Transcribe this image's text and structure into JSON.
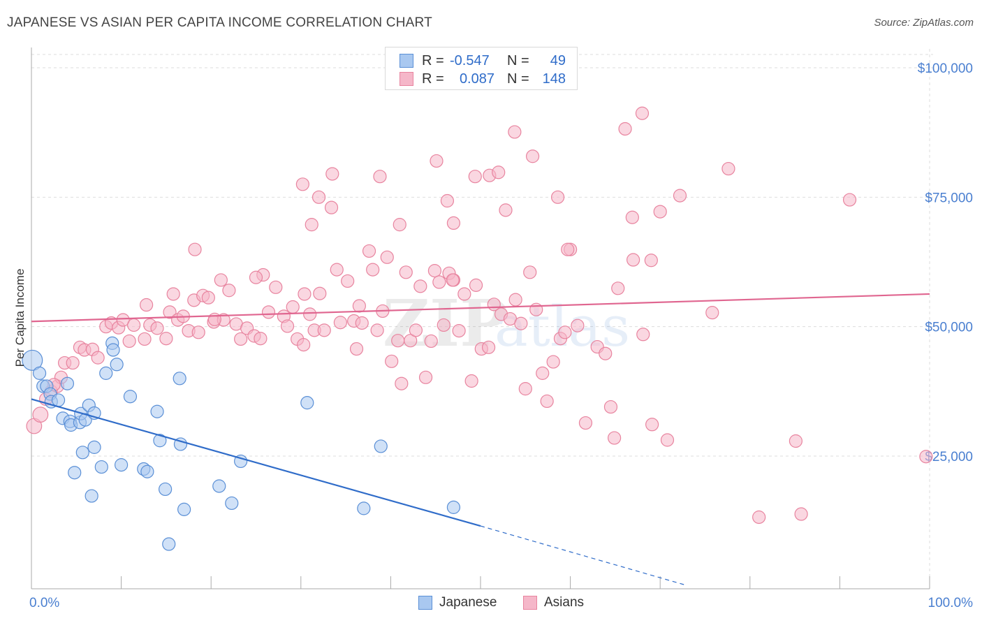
{
  "header": {
    "title": "JAPANESE VS ASIAN PER CAPITA INCOME CORRELATION CHART",
    "source": "Source: ZipAtlas.com"
  },
  "legend_top": {
    "rows": [
      {
        "r_label": "R =",
        "r_value": "-0.547",
        "n_label": "N =",
        "n_value": "49"
      },
      {
        "r_label": "R =",
        "r_value": "0.087",
        "n_label": "N =",
        "n_value": "148"
      }
    ]
  },
  "legend_bottom": {
    "items": [
      {
        "label": "Japanese"
      },
      {
        "label": "Asians"
      }
    ]
  },
  "colors": {
    "japanese_fill": "#a9c8f0",
    "japanese_stroke": "#5a8fd6",
    "japanese_line": "#2f6cc9",
    "asians_fill": "#f5b7c9",
    "asians_stroke": "#e8849f",
    "asians_line": "#e06690",
    "grid": "#dddddd",
    "tick_text": "#4a7fd0"
  },
  "watermark": {
    "part1": "ZIP",
    "part2": "atlas"
  },
  "chart_data": {
    "type": "scatter",
    "title": "JAPANESE VS ASIAN PER CAPITA INCOME CORRELATION CHART",
    "xlabel": "",
    "ylabel": "Per Capita Income",
    "xlim": [
      0,
      100
    ],
    "ylim": [
      0,
      105000
    ],
    "x_tick_labels": [
      "0.0%",
      "100.0%"
    ],
    "y_ticks": [
      25000,
      50000,
      75000,
      100000
    ],
    "y_tick_labels": [
      "$25,000",
      "$50,000",
      "$75,000",
      "$100,000"
    ],
    "grid": true,
    "legend_position": "top-center",
    "series": [
      {
        "name": "Japanese",
        "R": -0.547,
        "N": 49,
        "trend": {
          "x0": 0,
          "y0": 36000,
          "x1": 50,
          "y1": 11500,
          "dashed_to_x": 73,
          "dashed_to_y": 0
        },
        "points": [
          [
            0.1,
            43500,
            1.6
          ],
          [
            0.9,
            41000,
            1.0
          ],
          [
            1.3,
            38500,
            1.0
          ],
          [
            1.7,
            38500,
            1.0
          ],
          [
            4.0,
            39000,
            1.0
          ],
          [
            2.1,
            37000,
            1.0
          ],
          [
            2.2,
            35500,
            1.0
          ],
          [
            3.0,
            35800,
            1.0
          ],
          [
            3.5,
            32300,
            1.0
          ],
          [
            4.3,
            31700,
            1.0
          ],
          [
            4.4,
            31000,
            1.0
          ],
          [
            5.4,
            31500,
            1.0
          ],
          [
            5.5,
            33200,
            1.0
          ],
          [
            6.4,
            34800,
            1.0
          ],
          [
            6.0,
            32000,
            1.0
          ],
          [
            7.0,
            33300,
            1.0
          ],
          [
            8.3,
            41000,
            1.0
          ],
          [
            9.0,
            46800,
            1.0
          ],
          [
            9.1,
            45500,
            1.0
          ],
          [
            9.5,
            42700,
            1.0
          ],
          [
            11.0,
            36500,
            1.0
          ],
          [
            14.0,
            33600,
            1.0
          ],
          [
            16.5,
            40000,
            1.0
          ],
          [
            14.3,
            28000,
            1.0
          ],
          [
            16.6,
            27300,
            1.0
          ],
          [
            7.0,
            26700,
            1.0
          ],
          [
            5.7,
            25700,
            1.0
          ],
          [
            4.8,
            21800,
            1.0
          ],
          [
            7.8,
            22900,
            1.0
          ],
          [
            10.0,
            23300,
            1.0
          ],
          [
            12.5,
            22500,
            1.0
          ],
          [
            12.9,
            22000,
            1.0
          ],
          [
            23.3,
            24000,
            1.0
          ],
          [
            6.7,
            17300,
            1.0
          ],
          [
            14.9,
            18600,
            1.0
          ],
          [
            20.9,
            19200,
            1.0
          ],
          [
            17.0,
            14700,
            1.0
          ],
          [
            22.3,
            15900,
            1.0
          ],
          [
            30.7,
            35300,
            1.0
          ],
          [
            38.9,
            26900,
            1.0
          ],
          [
            37.0,
            14900,
            1.0
          ],
          [
            47.0,
            15100,
            1.0
          ],
          [
            15.3,
            8000,
            1.0
          ]
        ]
      },
      {
        "name": "Asians",
        "R": 0.087,
        "N": 148,
        "trend": {
          "x0": 0,
          "y0": 51000,
          "x1": 100,
          "y1": 56300
        },
        "points": [
          [
            0.3,
            30800,
            1.2
          ],
          [
            1.0,
            33000,
            1.2
          ],
          [
            1.6,
            36000,
            1.0
          ],
          [
            2.2,
            37500,
            1.0
          ],
          [
            2.9,
            38500,
            1.0
          ],
          [
            3.3,
            40200,
            1.0
          ],
          [
            2.5,
            38800,
            1.0
          ],
          [
            3.7,
            43000,
            1.0
          ],
          [
            4.6,
            43000,
            1.0
          ],
          [
            5.4,
            46000,
            1.0
          ],
          [
            5.9,
            45500,
            1.0
          ],
          [
            6.8,
            45600,
            1.0
          ],
          [
            7.4,
            44000,
            1.0
          ],
          [
            8.3,
            50000,
            1.0
          ],
          [
            8.9,
            50700,
            1.0
          ],
          [
            9.7,
            49800,
            1.0
          ],
          [
            10.2,
            51300,
            1.0
          ],
          [
            10.9,
            47200,
            1.0
          ],
          [
            11.4,
            50300,
            1.0
          ],
          [
            12.6,
            47600,
            1.0
          ],
          [
            12.8,
            54200,
            1.0
          ],
          [
            13.2,
            50300,
            1.0
          ],
          [
            14.0,
            49700,
            1.0
          ],
          [
            15.0,
            47700,
            1.0
          ],
          [
            15.4,
            52800,
            1.0
          ],
          [
            15.8,
            56300,
            1.0
          ],
          [
            16.3,
            51300,
            1.0
          ],
          [
            16.9,
            52000,
            1.0
          ],
          [
            17.5,
            49200,
            1.0
          ],
          [
            18.1,
            55100,
            1.0
          ],
          [
            18.6,
            48900,
            1.0
          ],
          [
            19.1,
            56000,
            1.0
          ],
          [
            19.7,
            55600,
            1.0
          ],
          [
            20.3,
            50900,
            1.0
          ],
          [
            21.1,
            59000,
            1.0
          ],
          [
            21.4,
            51300,
            1.0
          ],
          [
            22.0,
            57000,
            1.0
          ],
          [
            22.8,
            50500,
            1.0
          ],
          [
            23.3,
            47600,
            1.0
          ],
          [
            24.0,
            49700,
            1.0
          ],
          [
            24.8,
            48200,
            1.0
          ],
          [
            25.5,
            47700,
            1.0
          ],
          [
            25.8,
            60000,
            1.0
          ],
          [
            26.4,
            52800,
            1.0
          ],
          [
            27.2,
            57600,
            1.0
          ],
          [
            28.1,
            52000,
            1.0
          ],
          [
            28.5,
            50100,
            1.0
          ],
          [
            29.1,
            53800,
            1.0
          ],
          [
            29.6,
            47600,
            1.0
          ],
          [
            30.4,
            56300,
            1.0
          ],
          [
            31.0,
            52400,
            1.0
          ],
          [
            31.5,
            49300,
            1.0
          ],
          [
            32.1,
            56400,
            1.0
          ],
          [
            32.6,
            49300,
            1.0
          ],
          [
            33.4,
            73000,
            1.0
          ],
          [
            34.0,
            61000,
            1.0
          ],
          [
            34.4,
            50800,
            1.0
          ],
          [
            35.2,
            58800,
            1.0
          ],
          [
            35.9,
            51100,
            1.0
          ],
          [
            36.5,
            54000,
            1.0
          ],
          [
            36.8,
            50700,
            1.0
          ],
          [
            37.6,
            64600,
            1.0
          ],
          [
            38.0,
            61000,
            1.0
          ],
          [
            38.5,
            49300,
            1.0
          ],
          [
            39.1,
            53000,
            1.0
          ],
          [
            39.6,
            63400,
            1.0
          ],
          [
            40.1,
            43300,
            1.0
          ],
          [
            40.8,
            47300,
            1.0
          ],
          [
            41.2,
            39000,
            1.0
          ],
          [
            41.7,
            60500,
            1.0
          ],
          [
            42.2,
            47300,
            1.0
          ],
          [
            42.8,
            49300,
            1.0
          ],
          [
            43.3,
            57800,
            1.0
          ],
          [
            43.9,
            40200,
            1.0
          ],
          [
            44.5,
            47200,
            1.0
          ],
          [
            44.9,
            60800,
            1.0
          ],
          [
            45.4,
            58600,
            1.0
          ],
          [
            45.9,
            50300,
            1.0
          ],
          [
            46.5,
            60300,
            1.0
          ],
          [
            47.0,
            59000,
            1.0
          ],
          [
            47.6,
            49200,
            1.0
          ],
          [
            48.2,
            56300,
            1.0
          ],
          [
            49.0,
            39500,
            1.0
          ],
          [
            49.5,
            58000,
            1.0
          ],
          [
            50.1,
            45700,
            1.0
          ],
          [
            50.9,
            46000,
            1.0
          ],
          [
            51.5,
            54300,
            1.0
          ],
          [
            52.3,
            52400,
            1.0
          ],
          [
            52.8,
            72500,
            1.0
          ],
          [
            53.3,
            51500,
            1.0
          ],
          [
            53.9,
            55200,
            1.0
          ],
          [
            54.5,
            50600,
            1.0
          ],
          [
            55.0,
            38000,
            1.0
          ],
          [
            55.5,
            60500,
            1.0
          ],
          [
            56.2,
            53300,
            1.0
          ],
          [
            56.9,
            41000,
            1.0
          ],
          [
            57.4,
            35600,
            1.0
          ],
          [
            58.1,
            43200,
            1.0
          ],
          [
            58.9,
            47700,
            1.0
          ],
          [
            59.4,
            48900,
            1.0
          ],
          [
            60.0,
            64900,
            1.0
          ],
          [
            60.8,
            50200,
            1.0
          ],
          [
            61.7,
            31400,
            1.0
          ],
          [
            63.0,
            46100,
            1.0
          ],
          [
            63.9,
            44800,
            1.0
          ],
          [
            64.5,
            34500,
            1.0
          ],
          [
            64.9,
            28500,
            1.0
          ],
          [
            65.3,
            57400,
            1.0
          ],
          [
            67.0,
            62900,
            1.0
          ],
          [
            68.1,
            48500,
            1.0
          ],
          [
            69.1,
            31100,
            1.0
          ],
          [
            70.0,
            72200,
            1.0
          ],
          [
            70.8,
            28100,
            1.0
          ],
          [
            72.2,
            75300,
            1.0
          ],
          [
            75.8,
            52700,
            1.0
          ],
          [
            77.6,
            80500,
            1.0
          ],
          [
            81.0,
            13200,
            1.0
          ],
          [
            85.7,
            13800,
            1.0
          ],
          [
            85.1,
            27900,
            1.0
          ],
          [
            91.1,
            74500,
            1.0
          ],
          [
            99.6,
            24900,
            1.0
          ],
          [
            30.2,
            77500,
            1.0
          ],
          [
            31.2,
            69700,
            1.0
          ],
          [
            32.0,
            75000,
            1.0
          ],
          [
            33.5,
            79500,
            1.0
          ],
          [
            38.8,
            79000,
            1.0
          ],
          [
            41.0,
            69700,
            1.0
          ],
          [
            45.1,
            82000,
            1.0
          ],
          [
            46.3,
            74300,
            1.0
          ],
          [
            47.0,
            70000,
            1.0
          ],
          [
            49.4,
            79000,
            1.0
          ],
          [
            51.0,
            79200,
            1.0
          ],
          [
            52.0,
            79800,
            1.0
          ],
          [
            53.8,
            87600,
            1.0
          ],
          [
            55.8,
            82900,
            1.0
          ],
          [
            58.6,
            75000,
            1.0
          ],
          [
            59.7,
            64900,
            1.0
          ],
          [
            66.1,
            88200,
            1.0
          ],
          [
            68.0,
            91200,
            1.0
          ],
          [
            69.0,
            62800,
            1.0
          ],
          [
            66.9,
            71100,
            1.0
          ],
          [
            46.9,
            59000,
            1.0
          ],
          [
            18.2,
            64900,
            1.0
          ],
          [
            25.0,
            59500,
            1.0
          ],
          [
            20.4,
            51400,
            1.0
          ],
          [
            30.3,
            46500,
            1.0
          ],
          [
            36.2,
            45700,
            1.0
          ]
        ]
      }
    ]
  }
}
